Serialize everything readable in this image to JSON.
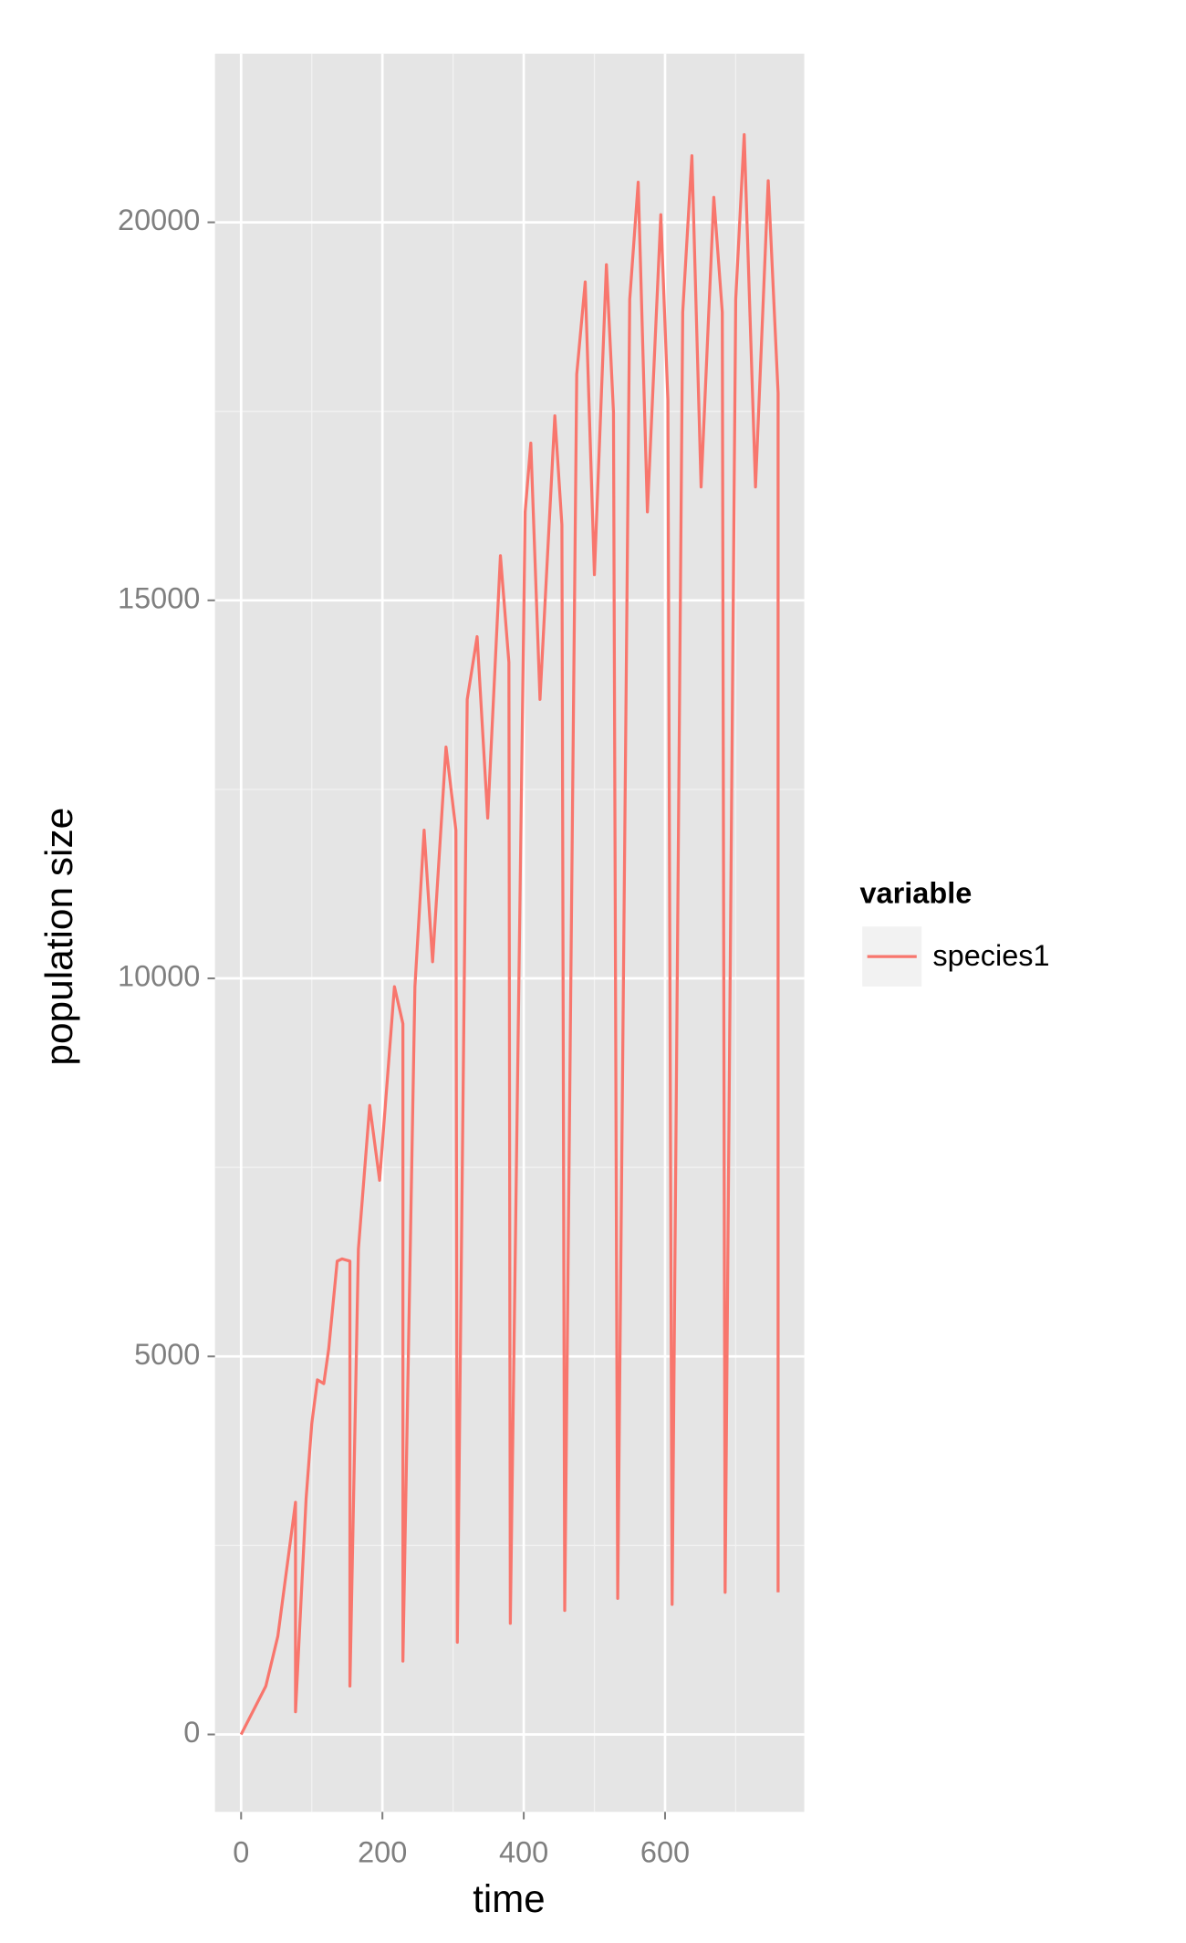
{
  "chart_data": {
    "type": "line",
    "x_label": "time",
    "y_label": "population size",
    "x": [
      0,
      35,
      52,
      77,
      77,
      92,
      100,
      108,
      117,
      124,
      136,
      143,
      154,
      154,
      166,
      182,
      196,
      217,
      229,
      229,
      246,
      259,
      271,
      290,
      304,
      306,
      320,
      334,
      349,
      367,
      379,
      381,
      402,
      410,
      423,
      444,
      454,
      458,
      475,
      487,
      500,
      517,
      527,
      533,
      550,
      562,
      575,
      594,
      604,
      610,
      625,
      638,
      651,
      669,
      681,
      685,
      700,
      712,
      728,
      746,
      760,
      760
    ],
    "series": [
      {
        "name": "species1",
        "color": "#F8766D",
        "values": [
          0,
          640,
          1300,
          3070,
          300,
          3120,
          4110,
          4690,
          4640,
          5100,
          6260,
          6290,
          6260,
          640,
          6420,
          8320,
          7330,
          9890,
          9400,
          970,
          9890,
          11960,
          10220,
          13060,
          11960,
          1220,
          13690,
          14520,
          12120,
          15590,
          14180,
          1470,
          16170,
          17080,
          13690,
          17440,
          16000,
          1640,
          17990,
          19210,
          15340,
          19440,
          17490,
          1800,
          18980,
          20530,
          16170,
          20100,
          17650,
          1720,
          18810,
          20880,
          16500,
          20330,
          18810,
          1880,
          18980,
          21160,
          16500,
          20550,
          17740,
          1880
        ]
      }
    ],
    "xlim": [
      -37,
      797
    ],
    "ylim": [
      -1024,
      22230
    ],
    "xticks": [
      0,
      200,
      400,
      600
    ],
    "yticks": [
      0,
      5000,
      10000,
      15000,
      20000
    ],
    "x_minor_ticks": [
      100,
      300,
      500,
      700
    ],
    "y_minor_ticks": [
      2500,
      7500,
      12500,
      17500
    ],
    "grid": true,
    "legend_title": "variable",
    "legend_position": "right"
  }
}
